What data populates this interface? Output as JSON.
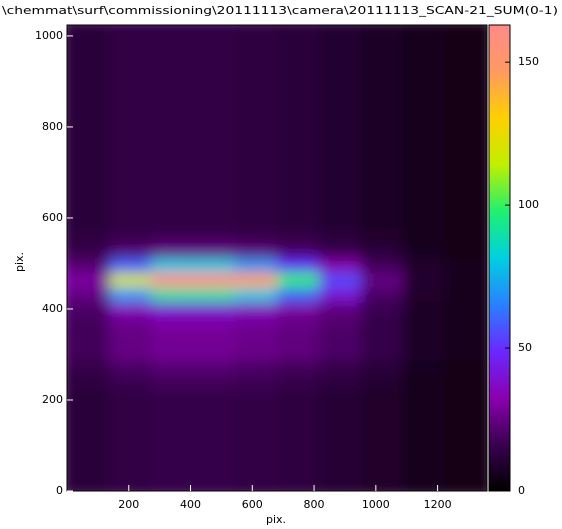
{
  "chart_data": {
    "type": "heatmap",
    "title": "\\chemmat\\surf\\commissioning\\20111113\\camera\\20111113_SCAN-21_SUM(0-1)",
    "xlabel": "pix.",
    "ylabel": "pix.",
    "xlim": [
      0,
      1360
    ],
    "ylim": [
      0,
      1024
    ],
    "xticks": [
      200,
      400,
      600,
      800,
      1000,
      1200
    ],
    "yticks": [
      0,
      200,
      400,
      600,
      800,
      1000
    ],
    "clim": [
      0,
      163
    ],
    "cticks": [
      0,
      50,
      100,
      150
    ],
    "colormap": [
      "#000000",
      "#3a0050",
      "#8a00b0",
      "#6a28ff",
      "#2a80ff",
      "#00d0e0",
      "#20f070",
      "#c0f000",
      "#ffd000",
      "#ff9a60",
      "#ff8a8a"
    ],
    "x_bins": [
      0,
      136,
      272,
      408,
      544,
      680,
      816,
      952,
      1088,
      1224,
      1360
    ],
    "y_bins": [
      0,
      32,
      64,
      96,
      128,
      160,
      192,
      224,
      256,
      288,
      320,
      352,
      384,
      416,
      448,
      480,
      512,
      544,
      576,
      608,
      640,
      672,
      704,
      736,
      768,
      800,
      832,
      864,
      896,
      928,
      960,
      992,
      1024
    ],
    "z": [
      [
        12,
        14,
        15,
        15,
        14,
        13,
        11,
        9,
        6,
        5
      ],
      [
        12,
        14,
        15,
        15,
        14,
        13,
        11,
        9,
        6,
        5
      ],
      [
        12,
        14,
        15,
        15,
        14,
        13,
        11,
        9,
        6,
        5
      ],
      [
        12,
        14,
        15,
        15,
        14,
        13,
        11,
        9,
        6,
        5
      ],
      [
        12,
        14,
        15,
        15,
        14,
        13,
        11,
        9,
        6,
        5
      ],
      [
        12,
        14,
        15,
        15,
        14,
        13,
        11,
        9,
        6,
        5
      ],
      [
        12,
        14,
        15,
        15,
        14,
        13,
        11,
        9,
        6,
        5
      ],
      [
        13,
        16,
        18,
        18,
        17,
        15,
        13,
        10,
        6,
        5
      ],
      [
        15,
        20,
        22,
        22,
        20,
        18,
        15,
        12,
        7,
        5
      ],
      [
        18,
        25,
        28,
        28,
        26,
        24,
        20,
        15,
        8,
        6
      ],
      [
        18,
        25,
        28,
        28,
        26,
        24,
        20,
        15,
        8,
        6
      ],
      [
        18,
        26,
        30,
        30,
        28,
        25,
        21,
        15,
        8,
        6
      ],
      [
        20,
        35,
        40,
        40,
        36,
        30,
        24,
        16,
        8,
        6
      ],
      [
        25,
        70,
        90,
        90,
        80,
        60,
        40,
        20,
        9,
        6
      ],
      [
        30,
        120,
        160,
        160,
        145,
        100,
        55,
        25,
        10,
        6
      ],
      [
        22,
        60,
        80,
        80,
        70,
        50,
        32,
        18,
        9,
        6
      ],
      [
        15,
        22,
        26,
        26,
        24,
        20,
        16,
        12,
        7,
        5
      ],
      [
        13,
        15,
        16,
        16,
        15,
        14,
        12,
        9,
        6,
        5
      ],
      [
        12,
        14,
        14,
        14,
        13,
        12,
        10,
        8,
        6,
        5
      ],
      [
        12,
        14,
        14,
        14,
        13,
        12,
        10,
        8,
        6,
        5
      ],
      [
        12,
        14,
        14,
        14,
        13,
        12,
        10,
        8,
        6,
        5
      ],
      [
        12,
        14,
        14,
        14,
        13,
        12,
        10,
        8,
        6,
        5
      ],
      [
        12,
        14,
        14,
        14,
        13,
        12,
        10,
        8,
        6,
        5
      ],
      [
        12,
        14,
        14,
        14,
        13,
        12,
        10,
        8,
        6,
        5
      ],
      [
        12,
        14,
        14,
        14,
        13,
        12,
        10,
        8,
        6,
        5
      ],
      [
        12,
        14,
        14,
        14,
        13,
        12,
        10,
        8,
        6,
        5
      ],
      [
        12,
        14,
        14,
        14,
        13,
        12,
        10,
        8,
        6,
        5
      ],
      [
        12,
        14,
        14,
        14,
        13,
        12,
        10,
        8,
        6,
        5
      ],
      [
        12,
        14,
        14,
        14,
        13,
        12,
        10,
        8,
        6,
        5
      ],
      [
        12,
        14,
        14,
        14,
        13,
        12,
        10,
        8,
        6,
        5
      ],
      [
        12,
        14,
        14,
        14,
        13,
        12,
        10,
        8,
        6,
        5
      ],
      [
        12,
        14,
        14,
        14,
        13,
        12,
        10,
        8,
        6,
        5
      ]
    ]
  }
}
